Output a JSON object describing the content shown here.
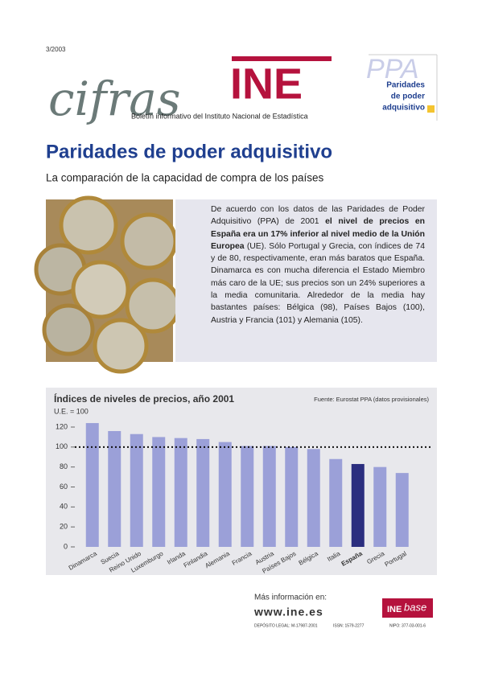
{
  "header": {
    "issue": "3/2003",
    "logo_script": "cifras",
    "logo": "INE",
    "tagline": "Boletín informativo del Instituto Nacional de Estadística",
    "badge_title": "PPA",
    "badge_lines": [
      "Paridades",
      "de poder",
      "adquisitivo"
    ]
  },
  "title": "Paridades de poder adquisitivo",
  "subtitle": "La comparación de la capacidad de compra de los países",
  "paragraph": [
    {
      "text": "De acuerdo con los datos de las Paridades de Poder Adquisitivo (PPA) de 2001 ",
      "bold": false
    },
    {
      "text": "el nivel de precios en España era un 17% inferior al nivel medio de la Unión Europea",
      "bold": true
    },
    {
      "text": " (UE). Sólo Portugal y Grecia, con índices de 74 y de 80, respectivamente, eran más baratos que España. Dinamarca es con mucha diferencia el Estado Miembro más caro de la UE; sus precios son un 24% superiores a la media comunitaria. Alrededor de la media hay bastantes países: Bélgica (98), Países Bajos (100), Austria y Francia (101) y Alemania (105).",
      "bold": false
    }
  ],
  "chart_data": {
    "type": "bar",
    "title": "Índices de niveles de precios, año 2001",
    "source": "Fuente: Eurostat PPA (datos provisionales)",
    "y_label": "U.E. = 100",
    "categories": [
      "Dinamarca",
      "Suecia",
      "Reino Unido",
      "Luxemburgo",
      "Irlanda",
      "Finlandia",
      "Alemania",
      "Francia",
      "Austria",
      "Países Bajos",
      "Bélgica",
      "Italia",
      "España",
      "Grecia",
      "Portugal"
    ],
    "values": [
      124,
      116,
      113,
      110,
      109,
      108,
      105,
      101,
      101,
      100,
      98,
      88,
      83,
      80,
      74
    ],
    "colors": [
      "#9ba0d8",
      "#9ba0d8",
      "#9ba0d8",
      "#9ba0d8",
      "#9ba0d8",
      "#9ba0d8",
      "#9ba0d8",
      "#9ba0d8",
      "#9ba0d8",
      "#9ba0d8",
      "#9ba0d8",
      "#9ba0d8",
      "#2b2e7f",
      "#9ba0d8",
      "#9ba0d8"
    ],
    "reference_line": 100,
    "ylim": [
      0,
      130
    ],
    "yticks": [
      0,
      20,
      40,
      60,
      80,
      100,
      120
    ],
    "grid": false
  },
  "footer": {
    "more_info": "Más información en:",
    "url": "www.ine.es",
    "base_logo": [
      "INE",
      "base"
    ],
    "legal": "DEPÓSITO LEGAL: M-17987-2001",
    "issn": "ISSN: 1579-2277",
    "nipo": "NIPO: 377-03-001-6"
  }
}
